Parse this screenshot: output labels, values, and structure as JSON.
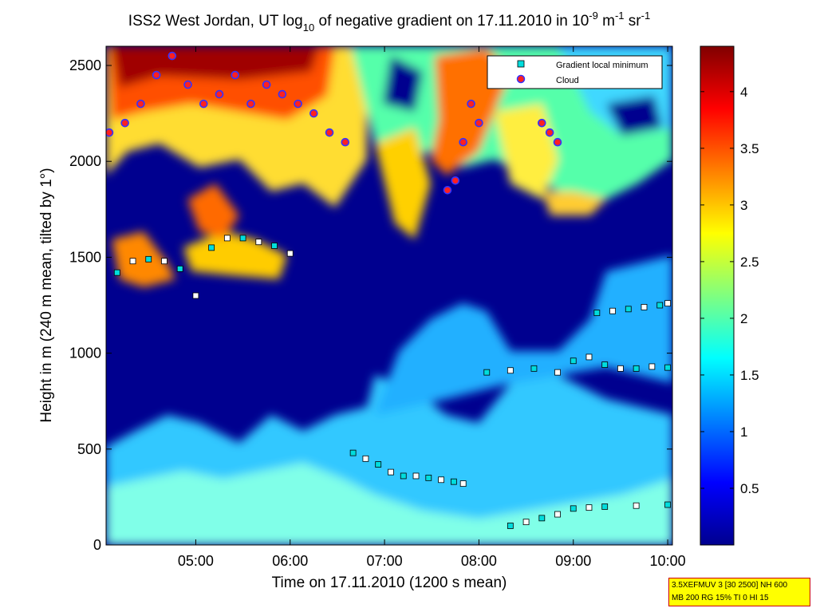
{
  "chart_data": {
    "type": "heatmap",
    "title_parts": {
      "prefix": "ISS2 West Jordan, UT log",
      "sub": "10",
      "middle": " of negative gradient on 17.11.2010 in 10",
      "sup1": "-9",
      "unit1": " m",
      "sup2": "-1",
      "unit2": " sr",
      "sup3": "-1"
    },
    "xlabel": "Time on 17.11.2010 (1200 s mean)",
    "ylabel": "Height in m (240 m mean, tilted by 1°)",
    "xlim": [
      "04:03",
      "10:03"
    ],
    "ylim": [
      0,
      2600
    ],
    "x_ticks": [
      "05:00",
      "06:00",
      "07:00",
      "08:00",
      "09:00",
      "10:00"
    ],
    "y_ticks": [
      0,
      500,
      1000,
      1500,
      2000,
      2500
    ],
    "colorbar": {
      "ticks": [
        0.5,
        1,
        1.5,
        2,
        2.5,
        3,
        3.5,
        4
      ],
      "range": [
        0,
        4.4
      ],
      "colormap": "jet"
    },
    "legend": {
      "position": "top-right",
      "entries": [
        {
          "label": "Gradient local minimum",
          "marker": "square",
          "color": "#00dddd"
        },
        {
          "label": "Cloud",
          "marker": "circle",
          "color": "#ff2020",
          "edge": "#3333ff"
        }
      ]
    },
    "series": [
      {
        "name": "Gradient local minimum",
        "layer": "low",
        "x": [
          "06:40",
          "06:48",
          "06:56",
          "07:04",
          "07:12",
          "07:20",
          "07:28",
          "07:36",
          "07:44",
          "07:50"
        ],
        "y": [
          480,
          450,
          420,
          380,
          360,
          360,
          350,
          340,
          330,
          320
        ]
      },
      {
        "name": "Gradient local minimum",
        "layer": "surface",
        "x": [
          "08:20",
          "08:30",
          "08:40",
          "08:50",
          "09:00",
          "09:10",
          "09:20",
          "09:40",
          "10:00"
        ],
        "y": [
          100,
          120,
          140,
          160,
          190,
          195,
          200,
          205,
          210
        ]
      },
      {
        "name": "Gradient local minimum",
        "layer": "mid",
        "x": [
          "08:05",
          "08:20",
          "08:35",
          "08:50",
          "09:00",
          "09:10",
          "09:20",
          "09:30",
          "09:40",
          "09:50",
          "10:00"
        ],
        "y": [
          900,
          910,
          920,
          900,
          960,
          980,
          940,
          920,
          920,
          930,
          925
        ]
      },
      {
        "name": "Gradient local minimum",
        "layer": "cloud-base",
        "x": [
          "09:15",
          "09:25",
          "09:35",
          "09:45",
          "09:55",
          "10:00"
        ],
        "y": [
          1210,
          1220,
          1230,
          1240,
          1250,
          1260
        ]
      },
      {
        "name": "Gradient local minimum",
        "layer": "elevated",
        "x": [
          "04:10",
          "04:20",
          "04:30",
          "04:40",
          "04:50",
          "05:00",
          "05:10",
          "05:20",
          "05:30",
          "05:40",
          "05:50",
          "06:00"
        ],
        "y": [
          1420,
          1480,
          1490,
          1480,
          1440,
          1300,
          1550,
          1600,
          1600,
          1580,
          1560,
          1520
        ]
      },
      {
        "name": "Cloud",
        "layer": "top",
        "x": [
          "04:05",
          "04:15",
          "04:25",
          "04:35",
          "04:45",
          "04:55",
          "05:05",
          "05:15",
          "05:25",
          "05:35",
          "05:45",
          "05:55",
          "06:05",
          "06:15",
          "06:25",
          "06:35"
        ],
        "y": [
          2150,
          2200,
          2300,
          2450,
          2550,
          2400,
          2300,
          2350,
          2450,
          2300,
          2400,
          2350,
          2300,
          2250,
          2150,
          2100
        ]
      },
      {
        "name": "Cloud",
        "layer": "late",
        "x": [
          "07:40",
          "07:45",
          "07:50",
          "07:55",
          "08:00",
          "08:40",
          "08:45",
          "08:50"
        ],
        "y": [
          1850,
          1900,
          2100,
          2300,
          2200,
          2200,
          2150,
          2100
        ]
      }
    ]
  },
  "annotation": {
    "line1": "3.5XEFMUV 3 [30 2500] NH 600",
    "line2": "MB 200 RG 15% TI 0 HI 15"
  }
}
